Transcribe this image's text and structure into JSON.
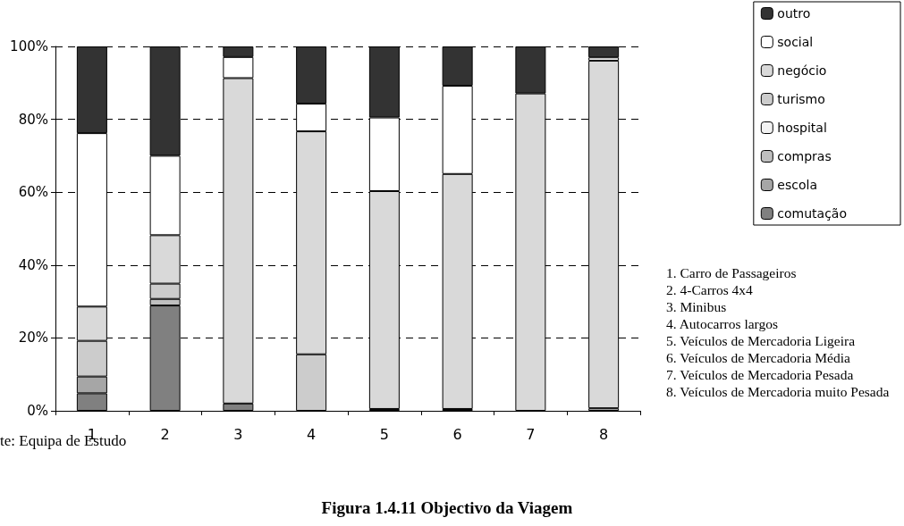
{
  "chart_data": {
    "type": "bar",
    "stacked": true,
    "title": "Figura 1.4.11 Objectivo da Viagem",
    "categories": [
      "1",
      "2",
      "3",
      "4",
      "5",
      "6",
      "7",
      "8"
    ],
    "series": [
      {
        "name": "comutação",
        "color": "#808080",
        "values": [
          4.8,
          28.9,
          2.0,
          null,
          null,
          0.5,
          null,
          null
        ]
      },
      {
        "name": "escola",
        "color": "#a6a6a6",
        "values": [
          4.6,
          null,
          null,
          null,
          null,
          null,
          null,
          null
        ]
      },
      {
        "name": "compras",
        "color": "#bfbfbf",
        "values": [
          null,
          1.8,
          null,
          null,
          null,
          null,
          null,
          0.7
        ]
      },
      {
        "name": "hospital",
        "color": "#f2f2f2",
        "values": [
          null,
          null,
          null,
          null,
          0.5,
          null,
          null,
          null
        ]
      },
      {
        "name": "turismo",
        "color": "#cccccc",
        "values": [
          9.8,
          4.2,
          null,
          15.5,
          null,
          null,
          null,
          null
        ]
      },
      {
        "name": "negócio",
        "color": "#d9d9d9",
        "values": [
          9.4,
          13.3,
          89.3,
          61.2,
          59.8,
          64.5,
          87.1,
          95.4
        ]
      },
      {
        "name": "social",
        "color": "#ffffff",
        "values": [
          47.6,
          21.8,
          5.8,
          7.6,
          20.2,
          24.2,
          null,
          0.9
        ]
      },
      {
        "name": "outro",
        "color": "#333333",
        "values": [
          23.8,
          30.0,
          2.9,
          15.7,
          19.5,
          10.8,
          12.9,
          3.0
        ]
      }
    ],
    "ylim": [
      0,
      100
    ],
    "yticks": [
      {
        "value": 0,
        "label": "0%"
      },
      {
        "value": 20,
        "label": "20%"
      },
      {
        "value": 40,
        "label": "40%"
      },
      {
        "value": 60,
        "label": "60%"
      },
      {
        "value": 80,
        "label": "80%"
      },
      {
        "value": 100,
        "label": "100%"
      }
    ],
    "grid": "y",
    "legend": "top right",
    "annotations": [
      "1. Carro de Passageiros",
      "2. 4-Carros  4x4",
      "3. Minibus",
      "4. Autocarros largos",
      "5. Veículos de Mercadoria Ligeira",
      "6. Veículos de Mercadoria Média",
      "7. Veículos de Mercadoria Pesada",
      "8. Veículos de Mercadoria muito Pesada",
      "te: Equipa de Estudo"
    ]
  }
}
